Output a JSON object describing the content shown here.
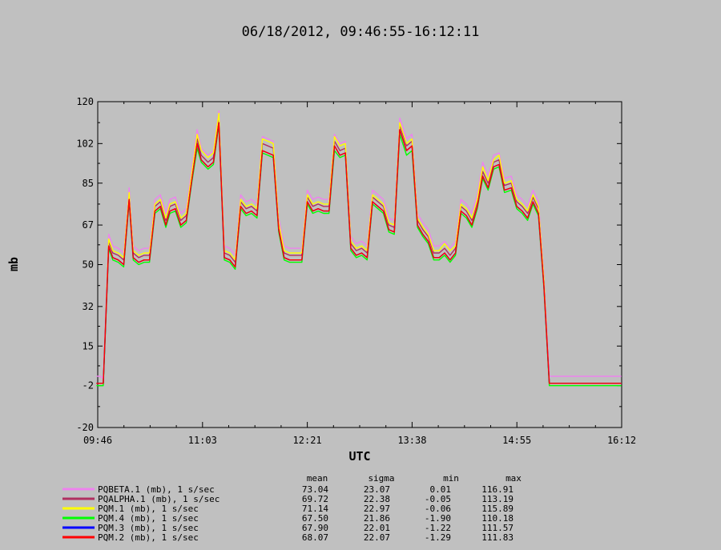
{
  "chart_data": {
    "type": "line",
    "title": "06/18/2012, 09:46:55-16:12:11",
    "xlabel": "UTC",
    "ylabel": "mb",
    "ylim": [
      -20,
      120
    ],
    "y_ticks": [
      -20,
      -2,
      15,
      32,
      50,
      67,
      85,
      102,
      120
    ],
    "x_ticks": [
      "09:46",
      "11:03",
      "12:21",
      "13:38",
      "14:55",
      "16:12"
    ],
    "x_range": [
      "09:46:55",
      "16:12:11"
    ],
    "grid": false,
    "legend_position": "bottom-left",
    "stats_headers": [
      "mean",
      "sigma",
      "min",
      "max"
    ],
    "x": [
      "09:46",
      "09:49",
      "09:51",
      "09:55",
      "09:58",
      "10:02",
      "10:06",
      "10:10",
      "10:13",
      "10:17",
      "10:21",
      "10:25",
      "10:29",
      "10:33",
      "10:37",
      "10:40",
      "10:44",
      "10:48",
      "10:52",
      "10:56",
      "11:00",
      "11:03",
      "11:08",
      "11:12",
      "11:16",
      "11:20",
      "11:24",
      "11:28",
      "11:32",
      "11:36",
      "11:40",
      "11:44",
      "11:48",
      "11:52",
      "11:56",
      "12:00",
      "12:04",
      "12:08",
      "12:12",
      "12:17",
      "12:21",
      "12:25",
      "12:29",
      "12:33",
      "12:37",
      "12:41",
      "12:45",
      "12:49",
      "12:53",
      "12:57",
      "13:01",
      "13:05",
      "13:09",
      "13:13",
      "13:17",
      "13:21",
      "13:25",
      "13:29",
      "13:34",
      "13:38",
      "13:42",
      "13:46",
      "13:50",
      "13:54",
      "13:58",
      "14:02",
      "14:06",
      "14:10",
      "14:14",
      "14:18",
      "14:22",
      "14:26",
      "14:30",
      "14:34",
      "14:38",
      "14:42",
      "14:46",
      "14:51",
      "14:55",
      "14:59",
      "15:03",
      "15:07",
      "15:11",
      "15:15",
      "15:19",
      "15:23",
      "15:27",
      "15:31",
      "15:35",
      "15:39",
      "15:43",
      "15:47",
      "15:51",
      "15:55",
      "15:59",
      "16:03",
      "16:08",
      "16:12"
    ],
    "series": [
      {
        "name": "PQBETA.1 (mb), 1 s/sec",
        "color": "#ee82ee",
        "mean": "73.04",
        "sigma": "23.07",
        "min": "0.01",
        "max": "116.91",
        "values": [
          2,
          2,
          1,
          63,
          58,
          57,
          55,
          83,
          58,
          56,
          57,
          57,
          78,
          80,
          72,
          78,
          79,
          72,
          74,
          91,
          108,
          100,
          97,
          99,
          116,
          58,
          57,
          54,
          80,
          77,
          78,
          76,
          105,
          104,
          103,
          70,
          58,
          57,
          57,
          57,
          82,
          78,
          79,
          78,
          78,
          106,
          102,
          103,
          62,
          59,
          60,
          58,
          82,
          80,
          78,
          70,
          69,
          113,
          104,
          106,
          72,
          68,
          65,
          58,
          58,
          60,
          57,
          60,
          78,
          76,
          72,
          80,
          94,
          88,
          97,
          98,
          87,
          88,
          80,
          78,
          75,
          82,
          77,
          46,
          2,
          2,
          2,
          2,
          2,
          2,
          2,
          2,
          2,
          2,
          2,
          2,
          2,
          2
        ]
      },
      {
        "name": "PQALPHA.1 (mb), 1 s/sec",
        "color": "#b03060",
        "mean": "69.72",
        "sigma": "22.38",
        "min": "-0.05",
        "max": "113.19",
        "values": [
          -1,
          -1,
          -1,
          60,
          55,
          54,
          52,
          80,
          55,
          53,
          54,
          54,
          75,
          77,
          69,
          75,
          76,
          69,
          71,
          88,
          104,
          97,
          94,
          96,
          113,
          55,
          54,
          51,
          77,
          74,
          75,
          73,
          102,
          101,
          100,
          67,
          55,
          54,
          54,
          54,
          79,
          75,
          76,
          75,
          75,
          103,
          99,
          100,
          59,
          56,
          57,
          55,
          79,
          77,
          75,
          67,
          66,
          110,
          101,
          103,
          69,
          65,
          62,
          55,
          55,
          57,
          54,
          57,
          75,
          73,
          69,
          77,
          90,
          85,
          94,
          95,
          84,
          85,
          77,
          75,
          72,
          79,
          74,
          43,
          -1,
          -1,
          -1,
          -1,
          -1,
          -1,
          -1,
          -1,
          -1,
          -1,
          -1,
          -1,
          -1,
          -1
        ]
      },
      {
        "name": "PQM.1 (mb), 1 s/sec",
        "color": "#ffff00",
        "mean": "71.14",
        "sigma": "22.97",
        "min": "-0.06",
        "max": "115.89",
        "values": [
          -1,
          -1,
          -1,
          61,
          56,
          55,
          53,
          81,
          56,
          54,
          55,
          55,
          76,
          78,
          70,
          76,
          77,
          70,
          72,
          89,
          106,
          99,
          96,
          98,
          115,
          56,
          55,
          52,
          78,
          75,
          76,
          74,
          104,
          103,
          102,
          68,
          56,
          55,
          55,
          55,
          80,
          76,
          77,
          76,
          76,
          105,
          101,
          102,
          60,
          57,
          58,
          56,
          80,
          78,
          76,
          68,
          67,
          111,
          102,
          104,
          70,
          66,
          63,
          56,
          56,
          59,
          56,
          58,
          76,
          74,
          70,
          78,
          92,
          86,
          95,
          97,
          85,
          86,
          78,
          76,
          73,
          80,
          75,
          44,
          -1,
          -1,
          -1,
          -1,
          -1,
          -1,
          -1,
          -1,
          -1,
          -1,
          -1,
          -1,
          -1,
          -1
        ]
      },
      {
        "name": "PQM.4 (mb), 1 s/sec",
        "color": "#00ff00",
        "mean": "67.50",
        "sigma": "21.86",
        "min": "-1.90",
        "max": "110.18",
        "values": [
          -2,
          -2,
          -2,
          57,
          52,
          51,
          49,
          77,
          52,
          50,
          51,
          51,
          72,
          74,
          66,
          72,
          73,
          66,
          68,
          85,
          100,
          94,
          91,
          93,
          110,
          52,
          51,
          48,
          74,
          71,
          72,
          70,
          98,
          97,
          96,
          64,
          52,
          51,
          51,
          51,
          76,
          72,
          73,
          72,
          72,
          99,
          96,
          97,
          56,
          53,
          54,
          52,
          76,
          74,
          72,
          64,
          63,
          106,
          97,
          99,
          66,
          62,
          59,
          52,
          52,
          54,
          51,
          54,
          72,
          70,
          66,
          74,
          87,
          82,
          91,
          92,
          81,
          82,
          74,
          72,
          69,
          76,
          71,
          40,
          -2,
          -2,
          -2,
          -2,
          -2,
          -2,
          -2,
          -2,
          -2,
          -2,
          -2,
          -2,
          -2,
          -2
        ]
      },
      {
        "name": "PQM.3 (mb), 1 s/sec",
        "color": "#0000ff",
        "mean": "67.90",
        "sigma": "22.01",
        "min": "-1.22",
        "max": "111.57",
        "values": [
          -1,
          -1,
          -1,
          58,
          53,
          52,
          50,
          78,
          53,
          51,
          52,
          52,
          73,
          75,
          67,
          73,
          74,
          67,
          69,
          86,
          102,
          95,
          92,
          94,
          111,
          53,
          52,
          49,
          75,
          72,
          73,
          71,
          99,
          98,
          97,
          65,
          53,
          52,
          52,
          52,
          77,
          73,
          74,
          73,
          73,
          101,
          97,
          98,
          57,
          54,
          55,
          53,
          77,
          75,
          73,
          65,
          64,
          108,
          99,
          101,
          67,
          63,
          60,
          53,
          53,
          55,
          52,
          55,
          73,
          71,
          67,
          75,
          88,
          83,
          92,
          93,
          82,
          83,
          75,
          73,
          70,
          77,
          72,
          41,
          -1,
          -1,
          -1,
          -1,
          -1,
          -1,
          -1,
          -1,
          -1,
          -1,
          -1,
          -1,
          -1,
          -1
        ]
      },
      {
        "name": "PQM.2 (mb), 1 s/sec",
        "color": "#ff0000",
        "mean": "68.07",
        "sigma": "22.07",
        "min": "-1.29",
        "max": "111.83",
        "values": [
          -1,
          -1,
          -1,
          58,
          53,
          52,
          50,
          78,
          53,
          51,
          52,
          52,
          73,
          75,
          67,
          73,
          74,
          67,
          69,
          86,
          102,
          95,
          92,
          94,
          111,
          53,
          52,
          49,
          75,
          72,
          73,
          71,
          99,
          98,
          97,
          65,
          53,
          52,
          52,
          52,
          77,
          73,
          74,
          73,
          73,
          101,
          97,
          98,
          57,
          54,
          55,
          53,
          77,
          75,
          73,
          65,
          64,
          108,
          99,
          101,
          67,
          63,
          60,
          53,
          53,
          55,
          52,
          55,
          73,
          71,
          67,
          75,
          88,
          83,
          92,
          93,
          82,
          83,
          75,
          73,
          70,
          77,
          72,
          41,
          -1,
          -1,
          -1,
          -1,
          -1,
          -1,
          -1,
          -1,
          -1,
          -1,
          -1,
          -1,
          -1,
          -1
        ]
      }
    ]
  }
}
